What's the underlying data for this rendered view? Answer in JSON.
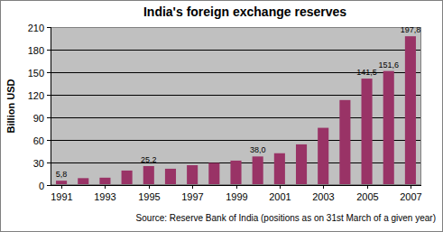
{
  "chart_data": {
    "type": "bar",
    "title": "India's foreign exchange reserves",
    "y_label": "Billion USD",
    "source": "Source: Reserve Bank of India (positions as on 31st March of a given year)",
    "categories": [
      "1991",
      null,
      "1993",
      null,
      "1995",
      null,
      "1997",
      null,
      "1999",
      null,
      "2001",
      null,
      "2003",
      null,
      "2005",
      null,
      "2007"
    ],
    "values": [
      5.8,
      9.2,
      9.8,
      19.3,
      25.2,
      21.7,
      26.4,
      29.4,
      32.5,
      38.0,
      42.3,
      54.1,
      76.1,
      113.0,
      141.5,
      151.6,
      197.8
    ],
    "value_labels": [
      "5,8",
      null,
      null,
      null,
      "25,2",
      null,
      null,
      null,
      null,
      "38,0",
      null,
      null,
      null,
      null,
      "141,5",
      "151,6",
      "197,8"
    ],
    "data_labels": true,
    "color": "#993366",
    "ylim": [
      0,
      210
    ],
    "yticks": [
      0,
      30,
      60,
      90,
      120,
      150,
      180,
      210
    ],
    "grid": true
  }
}
